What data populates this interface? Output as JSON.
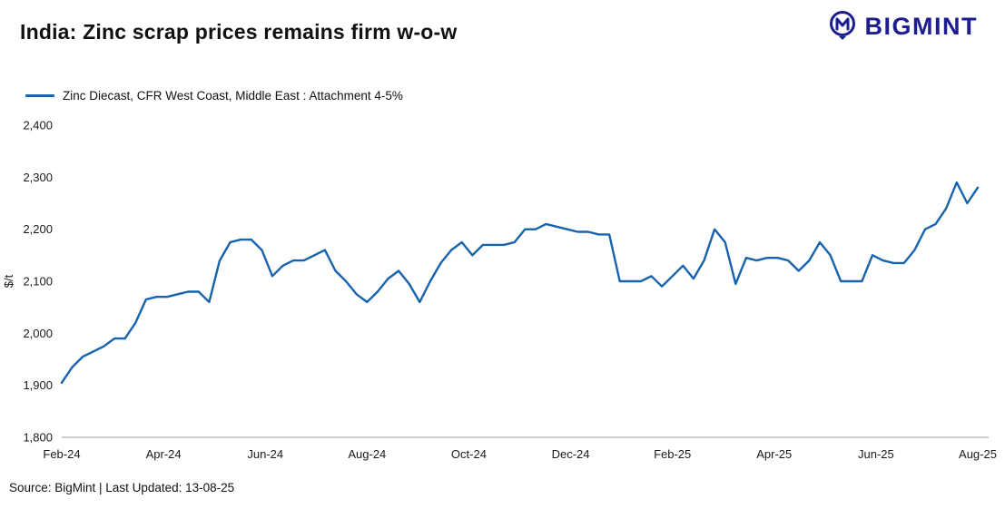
{
  "header": {
    "title": "India: Zinc scrap prices remains firm w-o-w"
  },
  "logo": {
    "text": "BIGMINT",
    "color": "#1d1d8f"
  },
  "footer": {
    "text": "Source: BigMint | Last Updated: 13-08-25"
  },
  "chart_data": {
    "type": "line",
    "title": "India: Zinc scrap prices remains firm w-o-w",
    "ylabel": "$/t",
    "ylim": [
      1800,
      2400
    ],
    "grid": false,
    "legend_position": "top-left",
    "line_color": "#1763ae",
    "y_ticks": [
      {
        "value": 1800,
        "label": "1,800"
      },
      {
        "value": 1900,
        "label": "1,900"
      },
      {
        "value": 2000,
        "label": "2,000"
      },
      {
        "value": 2100,
        "label": "2,100"
      },
      {
        "value": 2200,
        "label": "2,200"
      },
      {
        "value": 2300,
        "label": "2,300"
      },
      {
        "value": 2400,
        "label": "2,400"
      }
    ],
    "x_tick_labels": [
      "Feb-24",
      "Apr-24",
      "Jun-24",
      "Aug-24",
      "Oct-24",
      "Dec-24",
      "Feb-25",
      "Apr-25",
      "Jun-25",
      "Aug-25"
    ],
    "series": [
      {
        "name": "Zinc Diecast, CFR West Coast, Middle East : Attachment 4-5%",
        "color": "#1763ae",
        "values": [
          1905,
          1935,
          1955,
          1965,
          1975,
          1990,
          1990,
          2020,
          2065,
          2070,
          2070,
          2075,
          2080,
          2080,
          2060,
          2140,
          2175,
          2180,
          2180,
          2160,
          2110,
          2130,
          2140,
          2140,
          2150,
          2160,
          2120,
          2100,
          2075,
          2060,
          2080,
          2105,
          2120,
          2095,
          2060,
          2100,
          2135,
          2160,
          2175,
          2150,
          2170,
          2170,
          2170,
          2175,
          2200,
          2200,
          2210,
          2205,
          2200,
          2195,
          2195,
          2190,
          2190,
          2100,
          2100,
          2100,
          2110,
          2090,
          2110,
          2130,
          2105,
          2140,
          2200,
          2175,
          2095,
          2145,
          2140,
          2145,
          2145,
          2140,
          2120,
          2140,
          2175,
          2150,
          2100,
          2100,
          2100,
          2150,
          2140,
          2135,
          2135,
          2160,
          2200,
          2210,
          2240,
          2290,
          2250,
          2280
        ]
      }
    ]
  }
}
